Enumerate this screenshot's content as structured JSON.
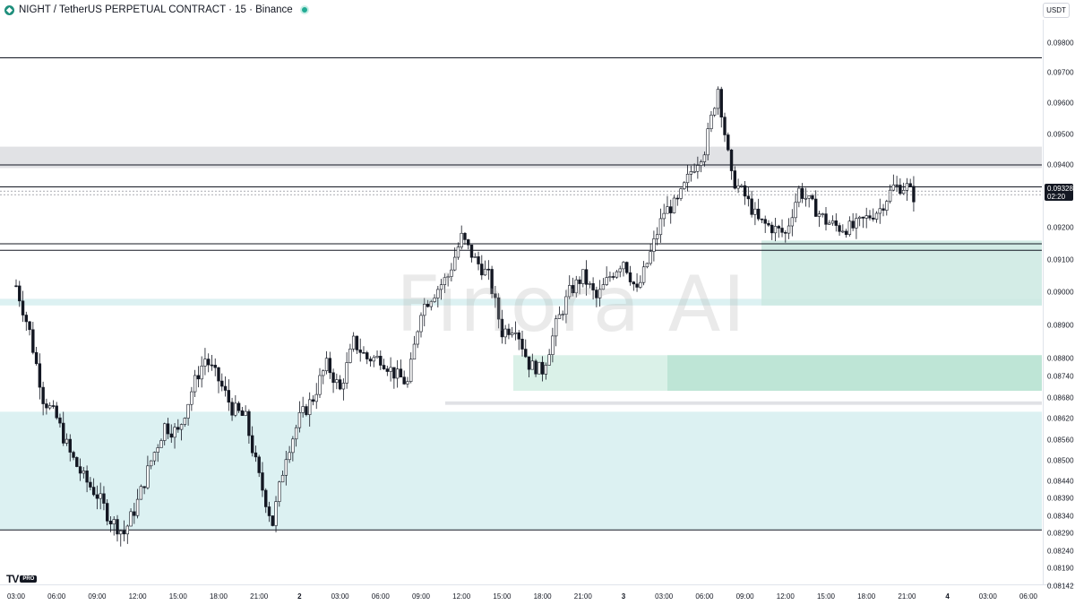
{
  "header": {
    "symbol_title": "NIGHT / TetherUS PERPETUAL CONTRACT · 15 · Binance",
    "currency_button": "USDT"
  },
  "watermark": "Finora AI",
  "branding": {
    "tv_mark": "TV",
    "tv_badge": "PRO"
  },
  "current_price": {
    "value": "0.09328",
    "countdown": "02:20"
  },
  "colors": {
    "up_candle": "#ffffff",
    "down_candle": "#131722",
    "zone_light_teal": "#d6eef0",
    "zone_green": "#b9e3d2",
    "zone_gray": "#dcdde0"
  },
  "chart_data": {
    "type": "candlestick",
    "symbol": "NIGHT / TetherUS PERPETUAL CONTRACT",
    "interval": "15",
    "exchange": "Binance",
    "ylim": [
      0.0812,
      0.0985
    ],
    "y_ticks": [
      "0.09800",
      "0.09700",
      "0.09600",
      "0.09500",
      "0.09400",
      "0.09328",
      "0.09200",
      "0.09100",
      "0.09000",
      "0.08900",
      "0.08800",
      "0.08740",
      "0.08680",
      "0.08620",
      "0.08560",
      "0.08500",
      "0.08440",
      "0.08390",
      "0.08340",
      "0.08290",
      "0.08240",
      "0.08190",
      "0.08142"
    ],
    "x_ticks": [
      {
        "label": "03:00",
        "bold": false
      },
      {
        "label": "06:00",
        "bold": false
      },
      {
        "label": "09:00",
        "bold": false
      },
      {
        "label": "12:00",
        "bold": false
      },
      {
        "label": "15:00",
        "bold": false
      },
      {
        "label": "18:00",
        "bold": false
      },
      {
        "label": "21:00",
        "bold": false
      },
      {
        "label": "2",
        "bold": true
      },
      {
        "label": "03:00",
        "bold": false
      },
      {
        "label": "06:00",
        "bold": false
      },
      {
        "label": "09:00",
        "bold": false
      },
      {
        "label": "12:00",
        "bold": false
      },
      {
        "label": "15:00",
        "bold": false
      },
      {
        "label": "18:00",
        "bold": false
      },
      {
        "label": "21:00",
        "bold": false
      },
      {
        "label": "3",
        "bold": true
      },
      {
        "label": "03:00",
        "bold": false
      },
      {
        "label": "06:00",
        "bold": false
      },
      {
        "label": "09:00",
        "bold": false
      },
      {
        "label": "12:00",
        "bold": false
      },
      {
        "label": "15:00",
        "bold": false
      },
      {
        "label": "18:00",
        "bold": false
      },
      {
        "label": "21:00",
        "bold": false
      },
      {
        "label": "4",
        "bold": true
      },
      {
        "label": "03:00",
        "bold": false
      },
      {
        "label": "06:00",
        "bold": false
      }
    ],
    "x_range_hours": [
      0,
      75
    ],
    "close_path": [
      [
        0,
        0.0902
      ],
      [
        1,
        0.0888
      ],
      [
        2,
        0.0868
      ],
      [
        3,
        0.0862
      ],
      [
        4,
        0.0852
      ],
      [
        5,
        0.0845
      ],
      [
        6,
        0.084
      ],
      [
        7,
        0.0833
      ],
      [
        8,
        0.0829
      ],
      [
        9,
        0.0838
      ],
      [
        10,
        0.085
      ],
      [
        11,
        0.086
      ],
      [
        12,
        0.0858
      ],
      [
        13,
        0.087
      ],
      [
        14,
        0.088
      ],
      [
        15,
        0.0873
      ],
      [
        16,
        0.0865
      ],
      [
        17,
        0.0862
      ],
      [
        18,
        0.0845
      ],
      [
        19,
        0.0832
      ],
      [
        20,
        0.0852
      ],
      [
        21,
        0.0862
      ],
      [
        22,
        0.0868
      ],
      [
        23,
        0.0878
      ],
      [
        24,
        0.087
      ],
      [
        25,
        0.0885
      ],
      [
        26,
        0.088
      ],
      [
        27,
        0.088
      ],
      [
        28,
        0.0875
      ],
      [
        29,
        0.0872
      ],
      [
        30,
        0.0895
      ],
      [
        31,
        0.09
      ],
      [
        32,
        0.0905
      ],
      [
        33,
        0.0917
      ],
      [
        34,
        0.091
      ],
      [
        35,
        0.0905
      ],
      [
        36,
        0.0888
      ],
      [
        37,
        0.089
      ],
      [
        38,
        0.0878
      ],
      [
        39,
        0.0876
      ],
      [
        40,
        0.089
      ],
      [
        41,
        0.09
      ],
      [
        42,
        0.0905
      ],
      [
        43,
        0.0898
      ],
      [
        44,
        0.0905
      ],
      [
        45,
        0.091
      ],
      [
        46,
        0.09
      ],
      [
        47,
        0.0912
      ],
      [
        48,
        0.0925
      ],
      [
        49,
        0.0928
      ],
      [
        50,
        0.0938
      ],
      [
        51,
        0.0945
      ],
      [
        52,
        0.0965
      ],
      [
        53,
        0.0936
      ],
      [
        54,
        0.093
      ],
      [
        55,
        0.0922
      ],
      [
        56,
        0.092
      ],
      [
        57,
        0.0918
      ],
      [
        58,
        0.0932
      ],
      [
        59,
        0.0927
      ],
      [
        60,
        0.0922
      ],
      [
        61,
        0.092
      ],
      [
        62,
        0.092
      ],
      [
        63,
        0.0923
      ],
      [
        64,
        0.0926
      ],
      [
        65,
        0.0933
      ],
      [
        66,
        0.0933
      ],
      [
        66.5,
        0.093
      ]
    ],
    "horizontal_levels": [
      0.0975,
      0.094,
      0.0933,
      0.0915,
      0.0913,
      0.083
    ],
    "zones": [
      {
        "type": "resistance",
        "color": "gray",
        "from": 0.0939,
        "to": 0.0946
      },
      {
        "type": "demand",
        "color": "light teal",
        "from": 0.0896,
        "to": 0.0898
      },
      {
        "type": "demand",
        "color": "teal",
        "from": 0.0896,
        "to": 0.0916
      },
      {
        "type": "demand",
        "color": "light green",
        "from": 0.087,
        "to": 0.0881
      },
      {
        "type": "demand",
        "color": "green",
        "from": 0.087,
        "to": 0.0881
      },
      {
        "type": "level",
        "color": "gray",
        "from": 0.0866,
        "to": 0.0867
      },
      {
        "type": "demand",
        "color": "light teal",
        "from": 0.083,
        "to": 0.0864
      }
    ],
    "last_price": 0.09328,
    "grid": false,
    "legend": "none"
  }
}
